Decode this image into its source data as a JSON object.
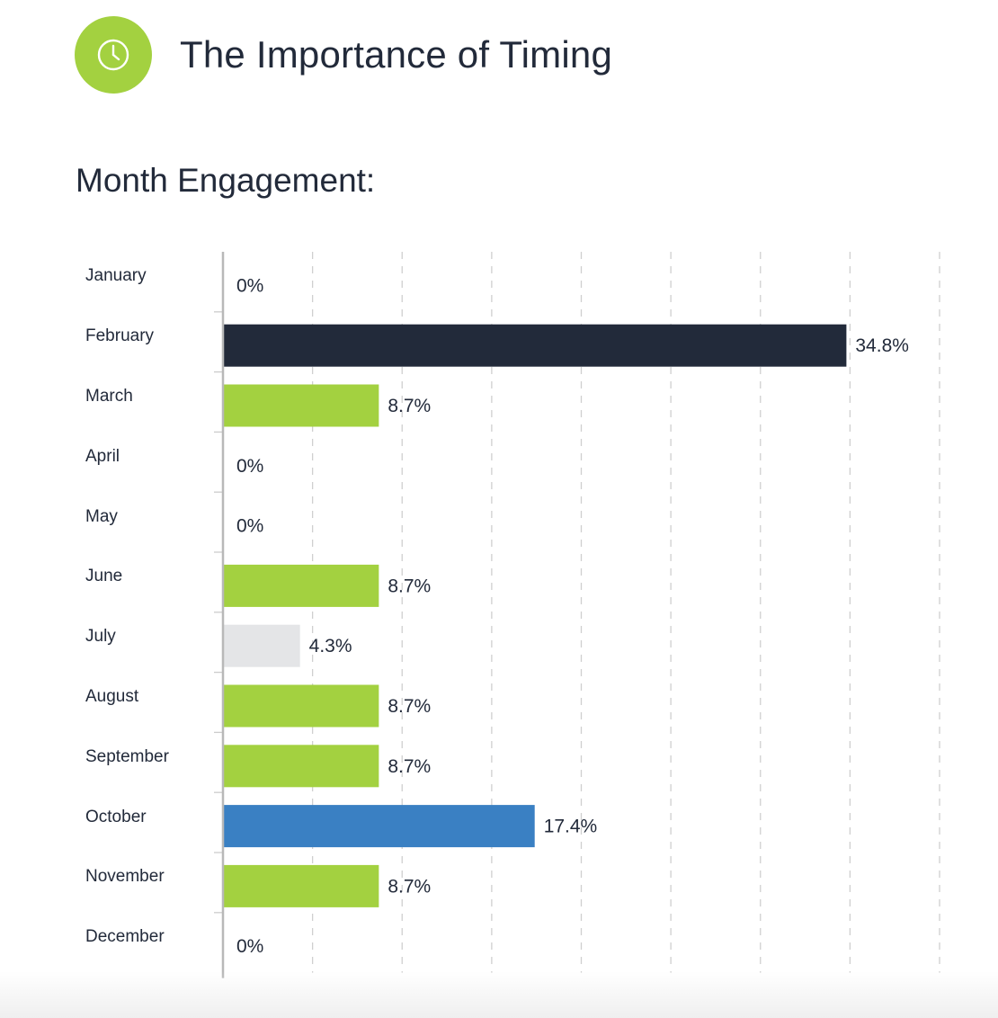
{
  "header": {
    "icon": "clock-icon",
    "title": "The Importance of Timing"
  },
  "colors": {
    "green": "#a3d140",
    "navy": "#222a3a",
    "blue": "#3a80c3",
    "gray": "#e4e5e7",
    "grid": "#cfcfcf"
  },
  "chart_data": {
    "type": "bar",
    "orientation": "horizontal",
    "title": "Month Engagement:",
    "categories": [
      "January",
      "February",
      "March",
      "April",
      "May",
      "June",
      "July",
      "August",
      "September",
      "October",
      "November",
      "December"
    ],
    "values": [
      0,
      34.8,
      8.7,
      0,
      0,
      8.7,
      4.3,
      8.7,
      8.7,
      17.4,
      8.7,
      0
    ],
    "value_labels": [
      "0%",
      "34.8%",
      "8.7%",
      "0%",
      "0%",
      "8.7%",
      "4.3%",
      "8.7%",
      "8.7%",
      "17.4%",
      "8.7%",
      "0%"
    ],
    "bar_colors": [
      "green",
      "navy",
      "green",
      "green",
      "green",
      "green",
      "gray",
      "green",
      "green",
      "blue",
      "green",
      "green"
    ],
    "xlim": [
      0,
      40
    ],
    "grid": true,
    "xlabel": "",
    "ylabel": ""
  }
}
